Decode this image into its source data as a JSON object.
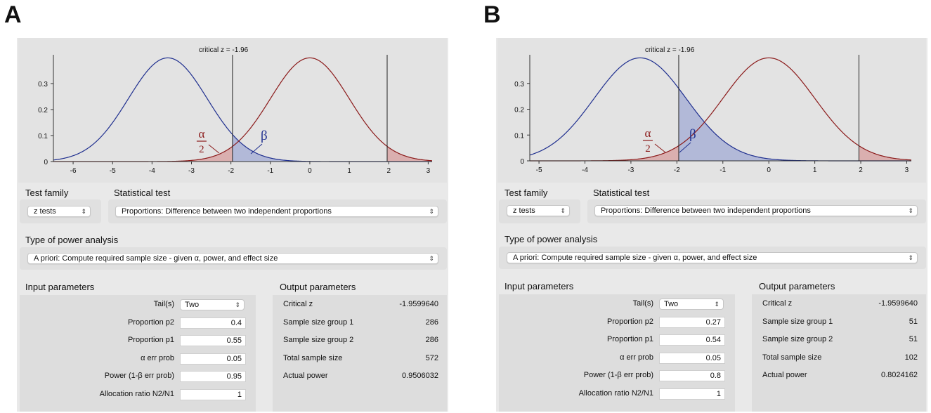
{
  "panels": [
    {
      "letter": "A",
      "plot": {
        "critical_label": "critical z = -1.96",
        "alpha_label_top": "α",
        "alpha_label_bottom": "2",
        "beta_label": "β",
        "x_ticks": [
          "-6",
          "-5",
          "-4",
          "-3",
          "-2",
          "-1",
          "0",
          "1",
          "2",
          "3"
        ],
        "y_ticks": [
          "0",
          "0.1",
          "0.2",
          "0.3"
        ],
        "chart_data": {
          "type": "line",
          "xlim": [
            -6.5,
            3.1
          ],
          "ylim": [
            0,
            0.4
          ],
          "series": [
            {
              "name": "H1 (blue)",
              "mean": -3.6,
              "sd": 1
            },
            {
              "name": "H0 (red)",
              "mean": 0,
              "sd": 1
            }
          ],
          "critical_lines": [
            -1.96,
            1.96
          ]
        }
      },
      "test_family_label": "Test family",
      "statistical_test_label": "Statistical test",
      "test_family_value": "z tests",
      "statistical_test_value": "Proportions: Difference between two independent proportions",
      "power_analysis_label": "Type of power analysis",
      "power_analysis_value": "A priori: Compute required sample size - given α, power, and effect size",
      "input_label": "Input parameters",
      "output_label": "Output parameters",
      "inputs": [
        {
          "label": "Tail(s)",
          "value": "Two"
        },
        {
          "label": "Proportion p2",
          "value": "0.4"
        },
        {
          "label": "Proportion p1",
          "value": "0.55"
        },
        {
          "label": "α err prob",
          "value": "0.05"
        },
        {
          "label": "Power (1-β err prob)",
          "value": "0.95"
        },
        {
          "label": "Allocation ratio N2/N1",
          "value": "1"
        }
      ],
      "outputs": [
        {
          "label": "Critical z",
          "value": "-1.9599640"
        },
        {
          "label": "Sample size group 1",
          "value": "286"
        },
        {
          "label": "Sample size group 2",
          "value": "286"
        },
        {
          "label": "Total sample size",
          "value": "572"
        },
        {
          "label": "Actual power",
          "value": "0.9506032"
        }
      ]
    },
    {
      "letter": "B",
      "plot": {
        "critical_label": "critical z = -1.96",
        "alpha_label_top": "α",
        "alpha_label_bottom": "2",
        "beta_label": "β",
        "x_ticks": [
          "-5",
          "-4",
          "-3",
          "-2",
          "-1",
          "0",
          "1",
          "2",
          "3"
        ],
        "y_ticks": [
          "0",
          "0.1",
          "0.2",
          "0.3"
        ],
        "chart_data": {
          "type": "line",
          "xlim": [
            -5.2,
            3.1
          ],
          "ylim": [
            0,
            0.4
          ],
          "series": [
            {
              "name": "H1 (blue)",
              "mean": -2.8,
              "sd": 1
            },
            {
              "name": "H0 (red)",
              "mean": 0,
              "sd": 1
            }
          ],
          "critical_lines": [
            -1.96,
            1.96
          ]
        }
      },
      "test_family_label": "Test family",
      "statistical_test_label": "Statistical test",
      "test_family_value": "z tests",
      "statistical_test_value": "Proportions: Difference between two independent proportions",
      "power_analysis_label": "Type of power analysis",
      "power_analysis_value": "A priori: Compute required sample size - given α, power, and effect size",
      "input_label": "Input parameters",
      "output_label": "Output parameters",
      "inputs": [
        {
          "label": "Tail(s)",
          "value": "Two"
        },
        {
          "label": "Proportion p2",
          "value": "0.27"
        },
        {
          "label": "Proportion p1",
          "value": "0.54"
        },
        {
          "label": "α err prob",
          "value": "0.05"
        },
        {
          "label": "Power (1-β err prob)",
          "value": "0.8"
        },
        {
          "label": "Allocation ratio N2/N1",
          "value": "1"
        }
      ],
      "outputs": [
        {
          "label": "Critical z",
          "value": "-1.9599640"
        },
        {
          "label": "Sample size group 1",
          "value": "51"
        },
        {
          "label": "Sample size group 2",
          "value": "51"
        },
        {
          "label": "Total sample size",
          "value": "102"
        },
        {
          "label": "Actual power",
          "value": "0.8024162"
        }
      ]
    }
  ],
  "colors": {
    "blue": "#1f2f8f",
    "red": "#8b1a1a",
    "blue_fill": "#a9b1d6",
    "red_fill": "#d8a8a8"
  }
}
